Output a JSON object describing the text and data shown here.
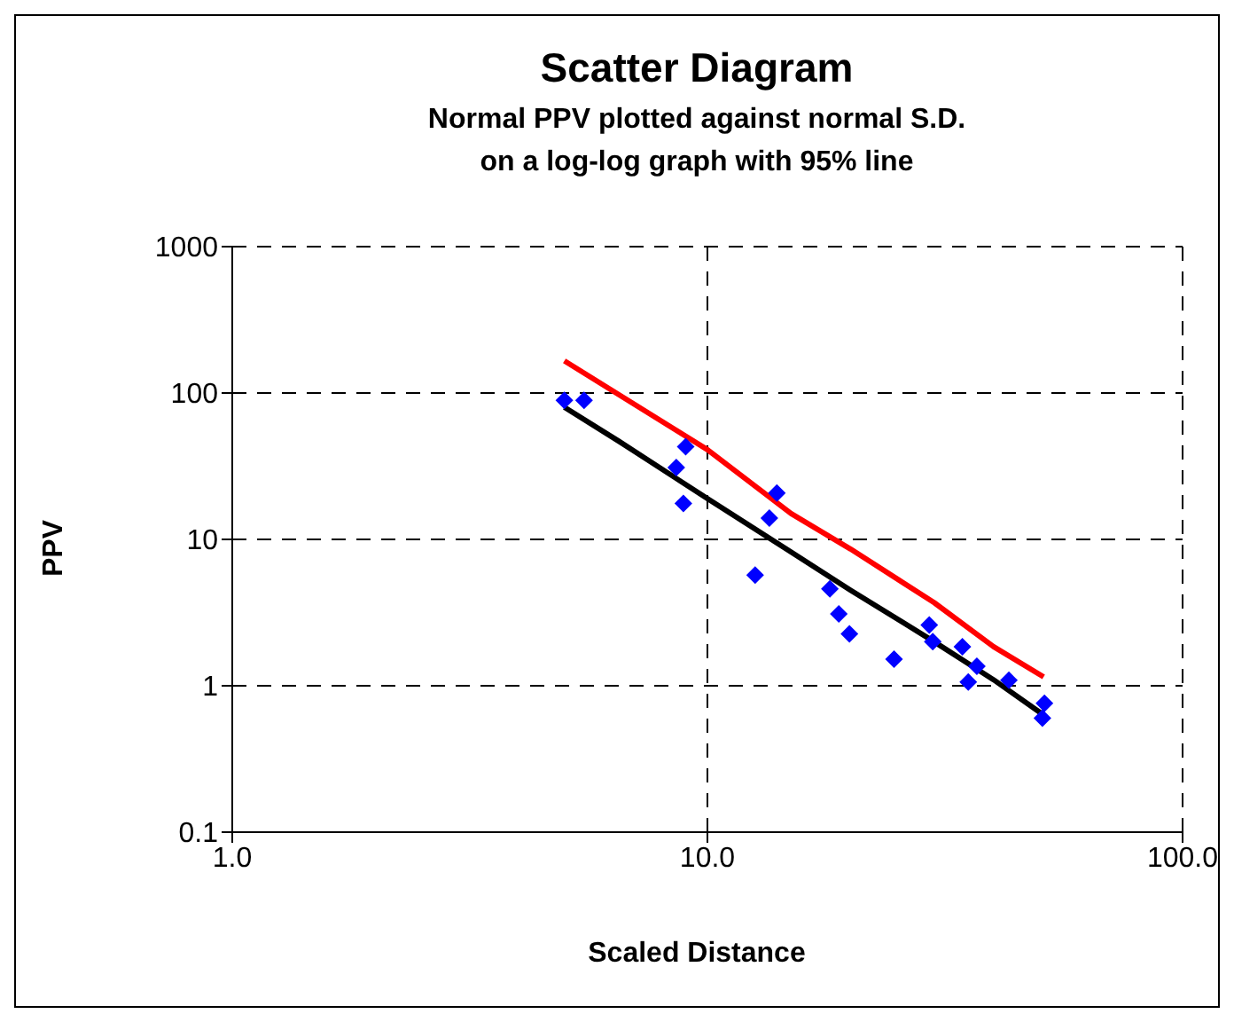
{
  "chart_data": {
    "type": "scatter",
    "title": "Scatter Diagram",
    "subtitle": "Normal PPV plotted against normal S.D.\non a log-log graph with 95% line",
    "xlabel": "Scaled Distance",
    "ylabel": "PPV",
    "log": "xy",
    "grid": true,
    "xlim": [
      1,
      100
    ],
    "xticks": [
      {
        "value": 1,
        "label": "1.0"
      },
      {
        "value": 10,
        "label": "10.0"
      },
      {
        "value": 100,
        "label": "100.0"
      }
    ],
    "ylim": [
      0.1,
      1000
    ],
    "yticks": [
      0.1,
      1,
      10,
      100,
      1000
    ],
    "series": [
      {
        "color": "#0000ff",
        "marker": "diamond",
        "x": [
          5.0,
          5.5,
          9.0,
          8.6,
          8.9,
          14.0,
          13.5,
          12.6,
          18.1,
          18.9,
          19.9,
          24.7,
          29.3,
          29.8,
          34.4,
          36.9,
          35.4,
          43.1,
          51.2,
          50.7
        ],
        "values": [
          89,
          89,
          43,
          31,
          17.6,
          20.7,
          14,
          5.7,
          4.6,
          3.1,
          2.26,
          1.52,
          2.6,
          2.0,
          1.85,
          1.36,
          1.06,
          1.09,
          0.76,
          0.6
        ]
      },
      {
        "type": "line",
        "color": "#000000",
        "marker": "none",
        "x": [
          5.0,
          6.5,
          10,
          15,
          20,
          30,
          40,
          50.7
        ],
        "values": [
          80,
          47,
          19,
          8.2,
          4.5,
          2.0,
          1.1,
          0.64
        ]
      },
      {
        "type": "line",
        "color": "#ff0000",
        "marker": "none",
        "x": [
          5.0,
          10,
          15,
          20,
          30,
          40,
          51
        ],
        "values": [
          166,
          41,
          15,
          8.6,
          3.7,
          1.85,
          1.15
        ]
      }
    ]
  }
}
